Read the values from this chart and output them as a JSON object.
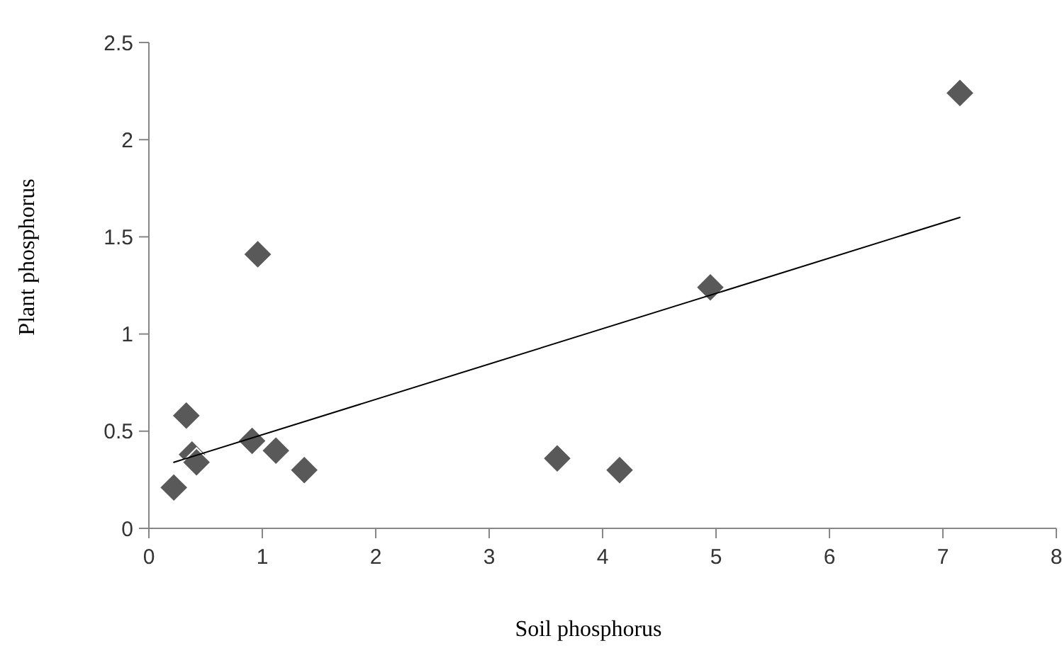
{
  "chart_data": {
    "type": "scatter",
    "xlabel": "Soil phosphorus",
    "ylabel": "Plant phosphorus",
    "xlim": [
      0,
      8
    ],
    "xticks": [
      0,
      1,
      2,
      3,
      4,
      5,
      6,
      7,
      8
    ],
    "ylim": [
      0,
      2.5
    ],
    "yticks": [
      0,
      0.5,
      1,
      1.5,
      2,
      2.5
    ],
    "grid": false,
    "marker": "diamond",
    "series": [
      {
        "color": "#595959",
        "x": [
          0.22,
          0.33,
          0.38,
          0.42,
          0.91,
          0.96,
          1.12,
          1.37,
          3.6,
          4.15,
          4.95,
          7.15
        ],
        "values": [
          0.21,
          0.58,
          0.38,
          0.34,
          0.45,
          1.41,
          0.4,
          0.3,
          0.36,
          0.3,
          1.24,
          2.24
        ]
      },
      {
        "type": "line",
        "color": "#000000",
        "line_style": "solid",
        "marker": "none",
        "x": [
          0.22,
          7.15
        ],
        "values": [
          0.34,
          1.6
        ]
      }
    ]
  }
}
